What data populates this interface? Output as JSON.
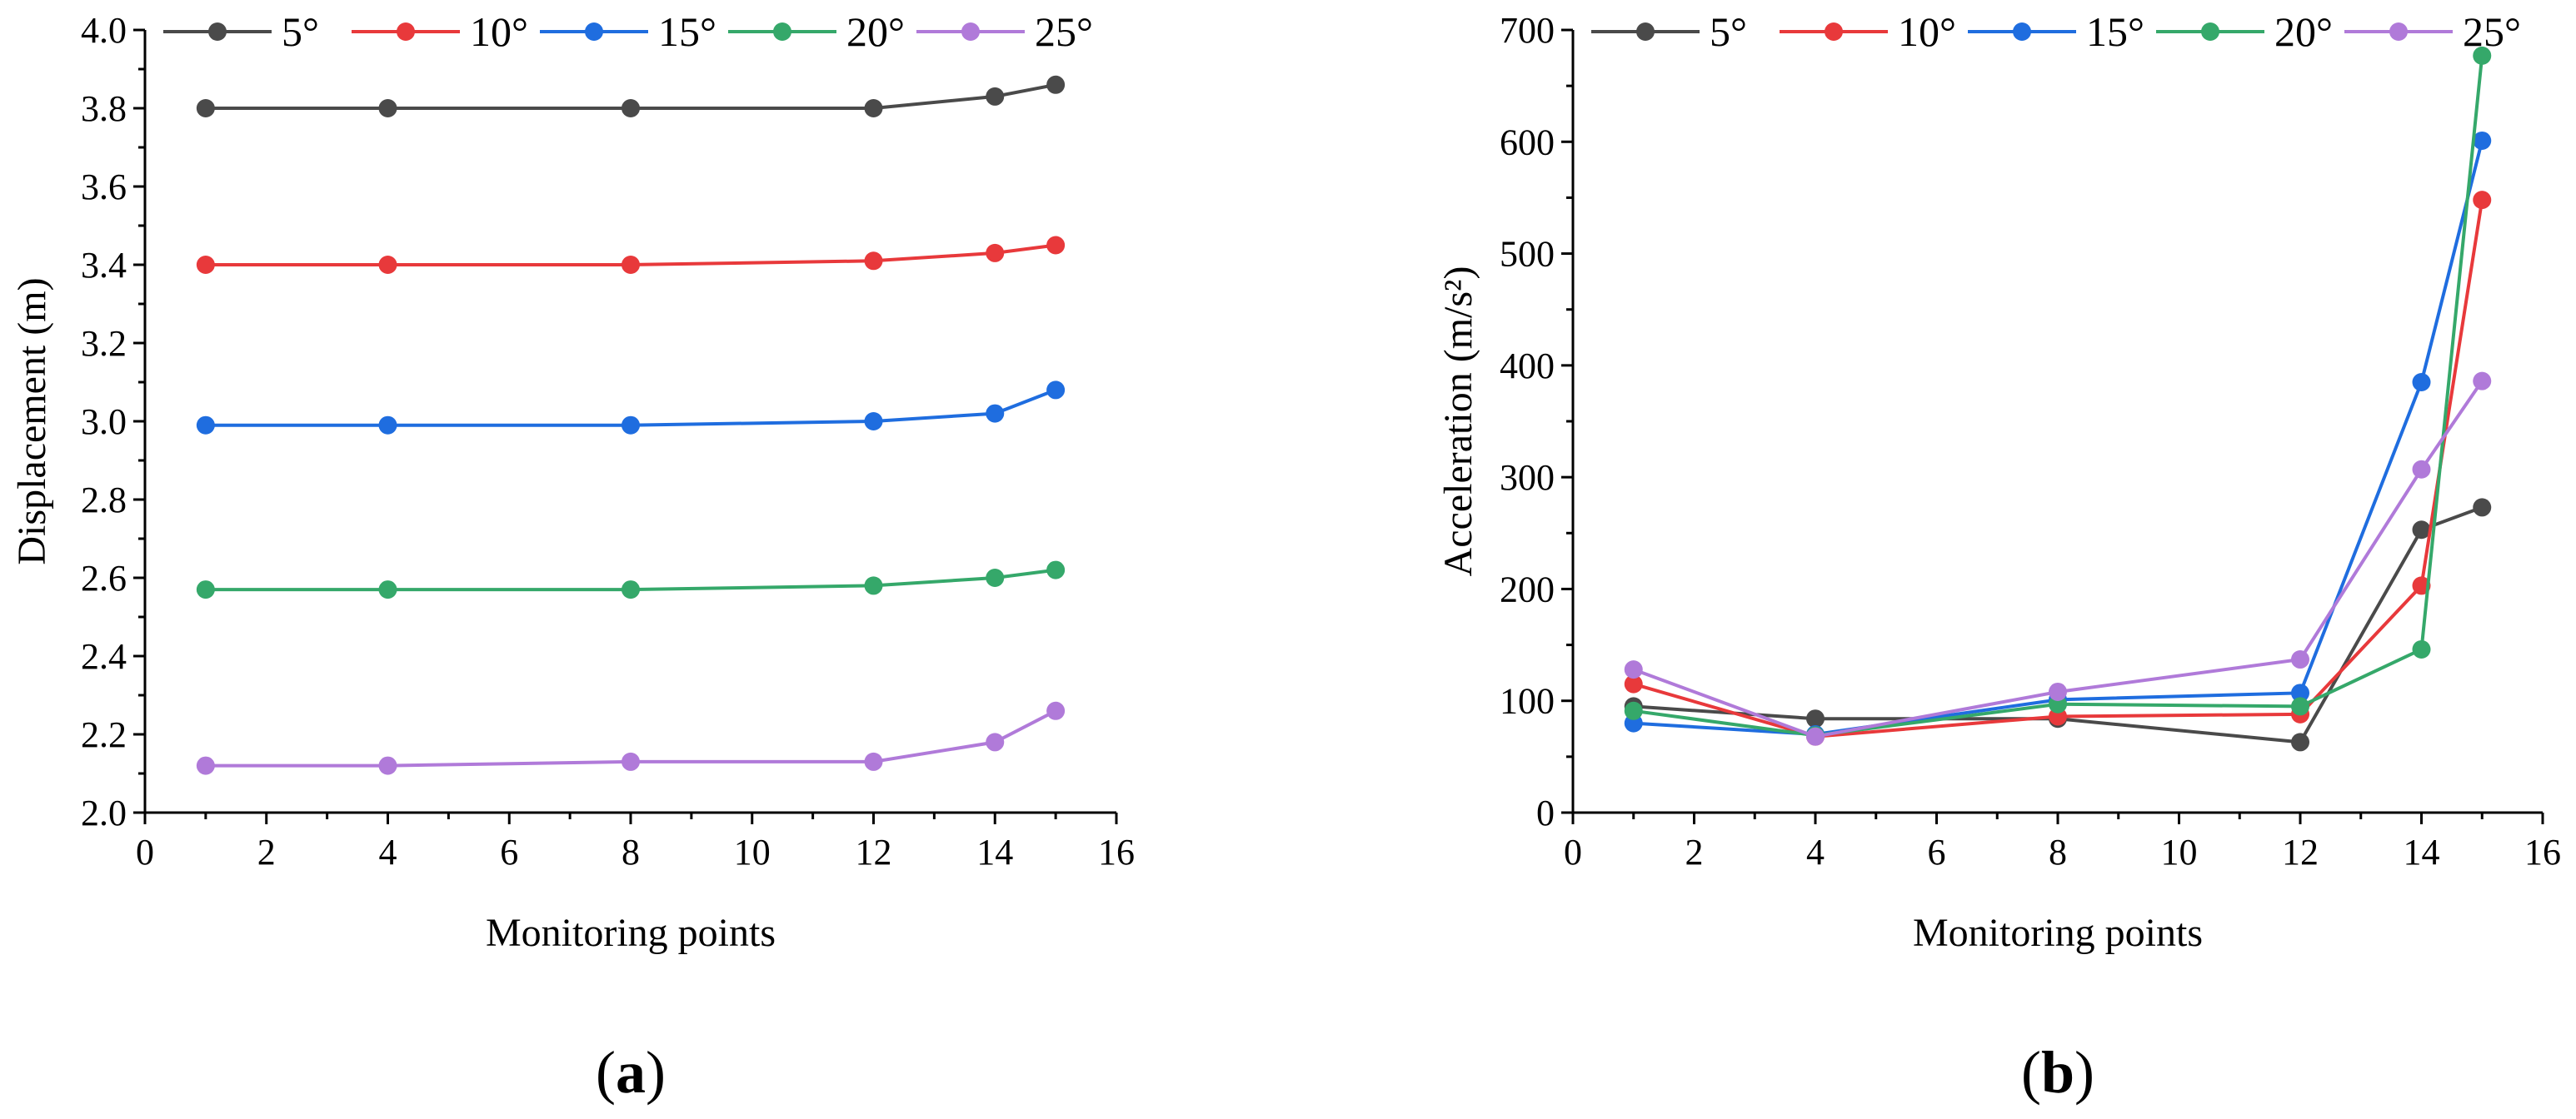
{
  "chart_data": [
    {
      "type": "line",
      "panel_label": "a",
      "title": "",
      "xlabel": "Monitoring points",
      "ylabel": "Displacement (m)",
      "xlim": [
        0,
        16
      ],
      "ylim": [
        2.0,
        4.0
      ],
      "xticks": [
        0,
        2,
        4,
        6,
        8,
        10,
        12,
        14,
        16
      ],
      "yticks": [
        2.0,
        2.2,
        2.4,
        2.6,
        2.8,
        3.0,
        3.2,
        3.4,
        3.6,
        3.8,
        4.0
      ],
      "ytick_labels": [
        "2.0",
        "2.2",
        "2.4",
        "2.6",
        "2.8",
        "3.0",
        "3.2",
        "3.4",
        "3.6",
        "3.8",
        "4.0"
      ],
      "x": [
        1,
        4,
        8,
        12,
        14,
        15
      ],
      "legend_position": "top",
      "series": [
        {
          "name": "5°",
          "color": "#4a4a4a",
          "values": [
            3.8,
            3.8,
            3.8,
            3.8,
            3.83,
            3.86
          ]
        },
        {
          "name": "10°",
          "color": "#e8393b",
          "values": [
            3.4,
            3.4,
            3.4,
            3.41,
            3.43,
            3.45
          ]
        },
        {
          "name": "15°",
          "color": "#1f6ddf",
          "values": [
            2.99,
            2.99,
            2.99,
            3.0,
            3.02,
            3.08
          ]
        },
        {
          "name": "20°",
          "color": "#35a86a",
          "values": [
            2.57,
            2.57,
            2.57,
            2.58,
            2.6,
            2.62
          ]
        },
        {
          "name": "25°",
          "color": "#b07ad9",
          "values": [
            2.12,
            2.12,
            2.13,
            2.13,
            2.18,
            2.26
          ]
        }
      ]
    },
    {
      "type": "line",
      "panel_label": "b",
      "title": "",
      "xlabel": "Monitoring points",
      "ylabel": "Acceleration (m/s²)",
      "xlim": [
        0,
        16
      ],
      "ylim": [
        0,
        700
      ],
      "xticks": [
        0,
        2,
        4,
        6,
        8,
        10,
        12,
        14,
        16
      ],
      "yticks": [
        0,
        100,
        200,
        300,
        400,
        500,
        600,
        700
      ],
      "ytick_labels": [
        "0",
        "100",
        "200",
        "300",
        "400",
        "500",
        "600",
        "700"
      ],
      "x": [
        1,
        4,
        8,
        12,
        14,
        15
      ],
      "legend_position": "top",
      "series": [
        {
          "name": "5°",
          "color": "#4a4a4a",
          "values": [
            95,
            84,
            84,
            63,
            253,
            273
          ]
        },
        {
          "name": "10°",
          "color": "#e8393b",
          "values": [
            115,
            68,
            86,
            88,
            203,
            548
          ]
        },
        {
          "name": "15°",
          "color": "#1f6ddf",
          "values": [
            80,
            70,
            101,
            107,
            385,
            601
          ]
        },
        {
          "name": "20°",
          "color": "#35a86a",
          "values": [
            91,
            69,
            97,
            95,
            146,
            677
          ]
        },
        {
          "name": "25°",
          "color": "#b07ad9",
          "values": [
            128,
            68,
            108,
            137,
            307,
            386
          ]
        }
      ]
    }
  ]
}
